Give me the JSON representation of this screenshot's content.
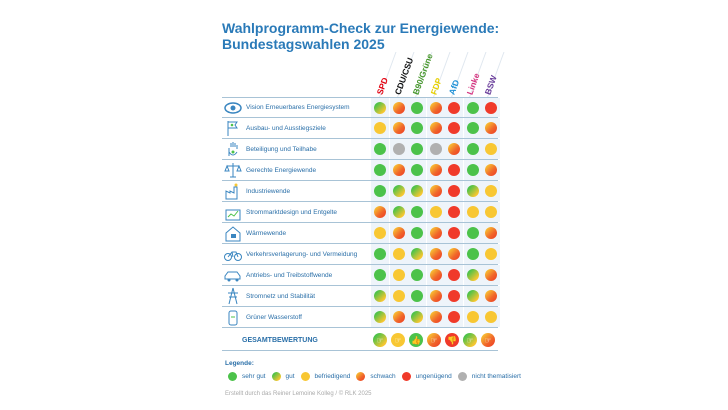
{
  "title_line1": "Wahlprogramm-Check zur Energiewende:",
  "title_line2": "Bundestagswahlen 2025",
  "parties": [
    {
      "name": "SPD",
      "color": "#e3000f"
    },
    {
      "name": "CDU/CSU",
      "color": "#111111"
    },
    {
      "name": "B90/Grüne",
      "color": "#46962b"
    },
    {
      "name": "FDP",
      "color": "#e6cf00"
    },
    {
      "name": "AfD",
      "color": "#1e90d6"
    },
    {
      "name": "Linke",
      "color": "#d6337f"
    },
    {
      "name": "BSW",
      "color": "#6a3d9a"
    }
  ],
  "rows": [
    {
      "label": "Vision Erneuerbares Energiesystem",
      "icon": "eye-icon",
      "ratings": [
        "gut",
        "schwach",
        "sehr_gut",
        "schwach",
        "ungenuegend",
        "sehr_gut",
        "ungenuegend"
      ]
    },
    {
      "label": "Ausbau- und Ausstiegsziele",
      "icon": "flag-icon",
      "ratings": [
        "befriedigend",
        "schwach",
        "sehr_gut",
        "schwach",
        "ungenuegend",
        "sehr_gut",
        "schwach"
      ]
    },
    {
      "label": "Beteiligung und Teilhabe",
      "icon": "hand-icon",
      "ratings": [
        "sehr_gut",
        "nicht",
        "sehr_gut",
        "nicht",
        "schwach",
        "sehr_gut",
        "befriedigend"
      ]
    },
    {
      "label": "Gerechte Energiewende",
      "icon": "scales-icon",
      "ratings": [
        "sehr_gut",
        "schwach",
        "sehr_gut",
        "schwach",
        "ungenuegend",
        "sehr_gut",
        "schwach"
      ]
    },
    {
      "label": "Industriewende",
      "icon": "factory-icon",
      "ratings": [
        "sehr_gut",
        "gut",
        "gut",
        "schwach",
        "ungenuegend",
        "gut",
        "befriedigend"
      ]
    },
    {
      "label": "Strommarktdesign und Entgelte",
      "icon": "chart-icon",
      "ratings": [
        "schwach",
        "gut",
        "sehr_gut",
        "befriedigend",
        "ungenuegend",
        "befriedigend",
        "befriedigend"
      ]
    },
    {
      "label": "Wärmewende",
      "icon": "house-icon",
      "ratings": [
        "befriedigend",
        "schwach",
        "sehr_gut",
        "schwach",
        "ungenuegend",
        "sehr_gut",
        "schwach"
      ]
    },
    {
      "label": "Verkehrsverlagerung- und Vermeidung",
      "icon": "bicycle-icon",
      "ratings": [
        "sehr_gut",
        "befriedigend",
        "gut",
        "schwach",
        "schwach",
        "sehr_gut",
        "befriedigend"
      ]
    },
    {
      "label": "Antriebs- und Treibstoffwende",
      "icon": "car-icon",
      "ratings": [
        "sehr_gut",
        "befriedigend",
        "sehr_gut",
        "schwach",
        "ungenuegend",
        "gut",
        "schwach"
      ]
    },
    {
      "label": "Stromnetz und Stabilität",
      "icon": "power-pylon-icon",
      "ratings": [
        "gut",
        "befriedigend",
        "sehr_gut",
        "schwach",
        "ungenuegend",
        "gut",
        "schwach"
      ]
    },
    {
      "label": "Grüner Wasserstoff",
      "icon": "hydrogen-tank-icon",
      "ratings": [
        "gut",
        "schwach",
        "gut",
        "schwach",
        "ungenuegend",
        "befriedigend",
        "befriedigend"
      ]
    }
  ],
  "gesamt": {
    "label": "GESAMTBEWERTUNG",
    "ratings": [
      "gut",
      "befriedigend",
      "sehr_gut",
      "schwach",
      "ungenuegend",
      "gut",
      "schwach"
    ],
    "icons": [
      "hand-pointing-icon",
      "hand-pointing-icon",
      "thumbs-up-icon",
      "hand-pointing-icon",
      "thumbs-down-icon",
      "hand-pointing-icon",
      "hand-pointing-icon"
    ]
  },
  "legend": {
    "title": "Legende:",
    "items": [
      {
        "key": "sehr_gut",
        "label": "sehr gut"
      },
      {
        "key": "gut",
        "label": "gut"
      },
      {
        "key": "befriedigend",
        "label": "befriedigend"
      },
      {
        "key": "schwach",
        "label": "schwach"
      },
      {
        "key": "ungenuegend",
        "label": "ungenügend"
      },
      {
        "key": "nicht",
        "label": "nicht thematisiert"
      }
    ]
  },
  "footer": "Erstellt durch das Reiner Lemoine Kolleg / © RLK 2025"
}
